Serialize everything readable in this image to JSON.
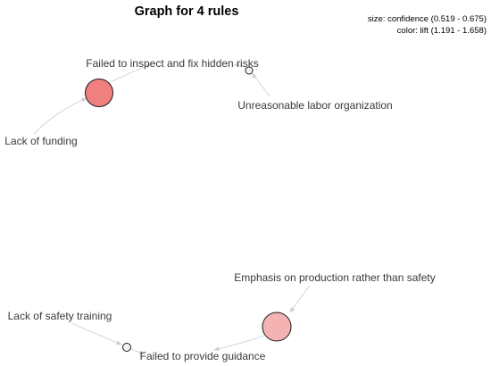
{
  "title": "Graph for 4 rules",
  "legend": {
    "size": "size: confidence (0.519 - 0.675)",
    "color": "color: lift (1.191 - 1.658)"
  },
  "rules": [
    {
      "id": "r1",
      "color": "#f08080"
    },
    {
      "id": "r2",
      "color": "#f6f6f6"
    },
    {
      "id": "r3",
      "color": "#f4b2b2"
    },
    {
      "id": "r4",
      "color": "#f6f6f6"
    }
  ],
  "items": {
    "failed_inspect": "Failed to inspect and fix hidden risks",
    "unreasonable_labor": "Unreasonable labor organization",
    "lack_funding": "Lack of funding",
    "emphasis_production": "Emphasis on production rather than safety",
    "lack_training": "Lack of safety training",
    "failed_guidance": "Failed to provide guidance"
  }
}
